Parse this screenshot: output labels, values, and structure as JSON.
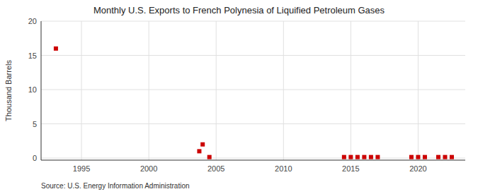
{
  "chart_data": {
    "type": "scatter",
    "title": "Monthly U.S. Exports to French Polynesia of Liquified Petroleum Gases",
    "ylabel": "Thousand Barrels",
    "source": "Source: U.S. Energy Information Administration",
    "color": "#cc0000",
    "marker": "square",
    "grid": true,
    "xlim": [
      1992.0,
      2023.5
    ],
    "ylim": [
      -0.3,
      20
    ],
    "xticks": [
      1995,
      2000,
      2005,
      2010,
      2015,
      2020
    ],
    "yticks": [
      0,
      5,
      10,
      15,
      20
    ],
    "x": [
      1993.1,
      2003.75,
      2004.0,
      2004.5,
      2014.5,
      2015.0,
      2015.5,
      2016.0,
      2016.5,
      2017.0,
      2019.5,
      2020.0,
      2020.5,
      2021.5,
      2022.0,
      2022.5
    ],
    "values": [
      16.0,
      1.0,
      2.0,
      0.15,
      0.15,
      0.15,
      0.15,
      0.15,
      0.15,
      0.15,
      0.15,
      0.15,
      0.15,
      0.15,
      0.15,
      0.15
    ]
  }
}
